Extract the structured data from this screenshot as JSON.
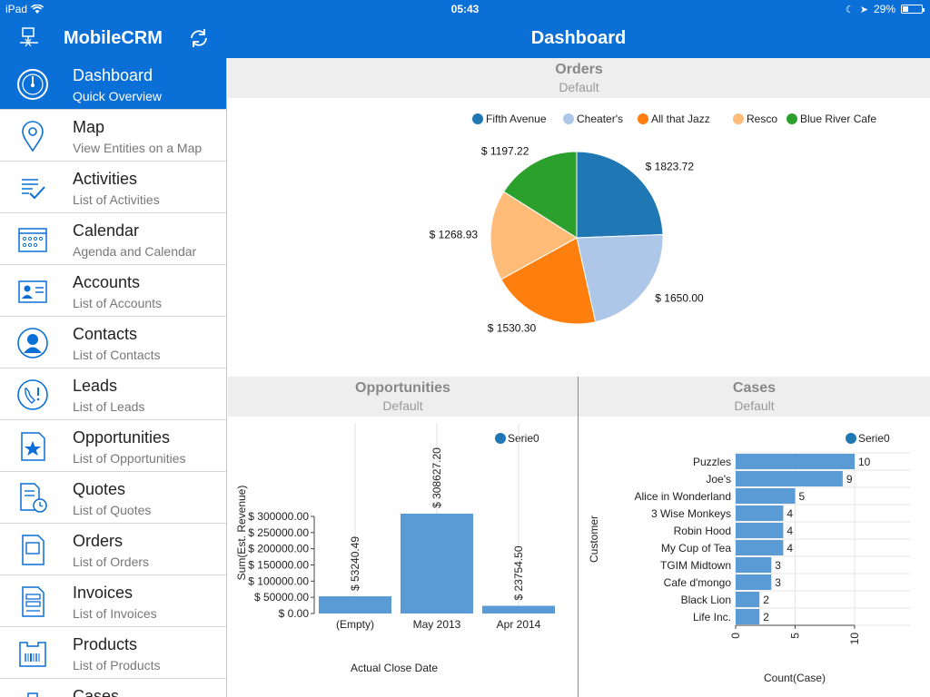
{
  "status_bar": {
    "device": "iPad",
    "time": "05:43",
    "battery": "29%",
    "battery_level": 0.29
  },
  "nav": {
    "app_title": "MobileCRM",
    "page_title": "Dashboard"
  },
  "sidebar": {
    "items": [
      {
        "label": "Dashboard",
        "sub": "Quick Overview",
        "icon": "dashboard-gauge-icon",
        "active": true
      },
      {
        "label": "Map",
        "sub": "View Entities on a Map",
        "icon": "map-pin-icon"
      },
      {
        "label": "Activities",
        "sub": "List of Activities",
        "icon": "checklist-icon"
      },
      {
        "label": "Calendar",
        "sub": "Agenda and Calendar",
        "icon": "calendar-icon"
      },
      {
        "label": "Accounts",
        "sub": "List of Accounts",
        "icon": "account-card-icon"
      },
      {
        "label": "Contacts",
        "sub": "List of Contacts",
        "icon": "contact-person-icon"
      },
      {
        "label": "Leads",
        "sub": "List of Leads",
        "icon": "lead-phone-icon"
      },
      {
        "label": "Opportunities",
        "sub": "List of Opportunities",
        "icon": "opportunity-star-icon"
      },
      {
        "label": "Quotes",
        "sub": "List of Quotes",
        "icon": "quote-clock-icon"
      },
      {
        "label": "Orders",
        "sub": "List of Orders",
        "icon": "order-document-icon"
      },
      {
        "label": "Invoices",
        "sub": "List of Invoices",
        "icon": "invoice-icon"
      },
      {
        "label": "Products",
        "sub": "List of Products",
        "icon": "product-barcode-icon"
      },
      {
        "label": "Cases",
        "sub": "",
        "icon": "case-briefcase-icon"
      }
    ]
  },
  "panels": {
    "orders": {
      "title": "Orders",
      "subtitle": "Default"
    },
    "opportunities": {
      "title": "Opportunities",
      "subtitle": "Default"
    },
    "cases": {
      "title": "Cases",
      "subtitle": "Default"
    }
  },
  "chart_data": [
    {
      "type": "pie",
      "title": "Orders",
      "legend_position": "top",
      "slices": [
        {
          "name": "Fifth Avenue",
          "value": 1823.72,
          "label": "$ 1823.72",
          "color": "#1f77b4"
        },
        {
          "name": "Cheater's",
          "value": 1650.0,
          "label": "$ 1650.00",
          "color": "#aec7e8"
        },
        {
          "name": "All that Jazz",
          "value": 1530.3,
          "label": "$ 1530.30",
          "color": "#ff7f0e"
        },
        {
          "name": "Resco",
          "value": 1268.93,
          "label": "$ 1268.93",
          "color": "#ffbb78"
        },
        {
          "name": "Blue River Cafe",
          "value": 1197.22,
          "label": "$ 1197.22",
          "color": "#2ca02c"
        }
      ]
    },
    {
      "type": "bar",
      "title": "Opportunities",
      "xlabel": "Actual Close Date",
      "ylabel": "Sum(Est. Revenue)",
      "legend": [
        "Serie0"
      ],
      "legend_color": "#1f77b4",
      "bar_color": "#5b9bd5",
      "ylim": [
        0,
        300000
      ],
      "yticks": [
        "$ 0.00",
        "$ 50000.00",
        "$ 100000.00",
        "$ 150000.00",
        "$ 200000.00",
        "$ 250000.00",
        "$ 300000.00"
      ],
      "categories": [
        "(Empty)",
        "May 2013",
        "Apr 2014"
      ],
      "values": [
        53240.49,
        308627.2,
        23754.5
      ],
      "data_labels": [
        "$ 53240.49",
        "$ 308627.20",
        "$ 23754.50"
      ]
    },
    {
      "type": "bar",
      "orientation": "horizontal",
      "title": "Cases",
      "xlabel": "Count(Case)",
      "ylabel": "Customer",
      "legend": [
        "Serie0"
      ],
      "legend_color": "#1f77b4",
      "bar_color": "#5b9bd5",
      "xlim": [
        0,
        10
      ],
      "xticks": [
        "0",
        "5",
        "10"
      ],
      "categories": [
        "Puzzles",
        "Joe's",
        "Alice in Wonderland",
        "3 Wise Monkeys",
        "Robin Hood",
        "My Cup of Tea",
        "TGIM Midtown",
        "Cafe d'mongo",
        "Black Lion",
        "Life Inc."
      ],
      "values": [
        10,
        9,
        5,
        4,
        4,
        4,
        3,
        3,
        2,
        2
      ]
    }
  ]
}
